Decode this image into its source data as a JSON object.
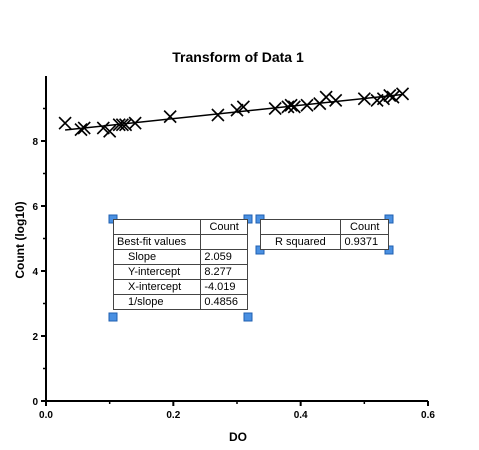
{
  "chart_data": {
    "type": "scatter",
    "title": "Transform of Data 1",
    "xlabel": "DO",
    "ylabel": "Count (log10)",
    "xlim": [
      0.0,
      0.6
    ],
    "ylim": [
      0,
      10
    ],
    "xticks": [
      "0.0",
      "0.2",
      "0.4",
      "0.6"
    ],
    "yticks": [
      "0",
      "2",
      "4",
      "6",
      "8"
    ],
    "x": [
      0.03,
      0.055,
      0.06,
      0.09,
      0.1,
      0.115,
      0.12,
      0.125,
      0.14,
      0.195,
      0.27,
      0.3,
      0.31,
      0.36,
      0.38,
      0.385,
      0.39,
      0.41,
      0.43,
      0.44,
      0.455,
      0.5,
      0.52,
      0.53,
      0.54,
      0.545,
      0.56
    ],
    "y": [
      8.55,
      8.35,
      8.4,
      8.4,
      8.3,
      8.5,
      8.5,
      8.5,
      8.55,
      8.75,
      8.8,
      8.95,
      9.05,
      9.0,
      9.05,
      9.1,
      9.05,
      9.1,
      9.15,
      9.35,
      9.25,
      9.3,
      9.25,
      9.3,
      9.4,
      9.35,
      9.45
    ],
    "fit_line": {
      "slope": 2.059,
      "intercept": 8.277,
      "x_range": [
        0.03,
        0.56
      ]
    },
    "grid": false
  },
  "results_table": {
    "header": "Count",
    "rows": [
      {
        "label": "Best-fit values",
        "value": ""
      },
      {
        "label": "Slope",
        "value": "2.059"
      },
      {
        "label": "Y-intercept",
        "value": "8.277"
      },
      {
        "label": "X-intercept",
        "value": "-4.019"
      },
      {
        "label": "1/slope",
        "value": "0.4856"
      }
    ]
  },
  "r2_table": {
    "header": "Count",
    "label": "R squared",
    "value": "0.9371"
  }
}
